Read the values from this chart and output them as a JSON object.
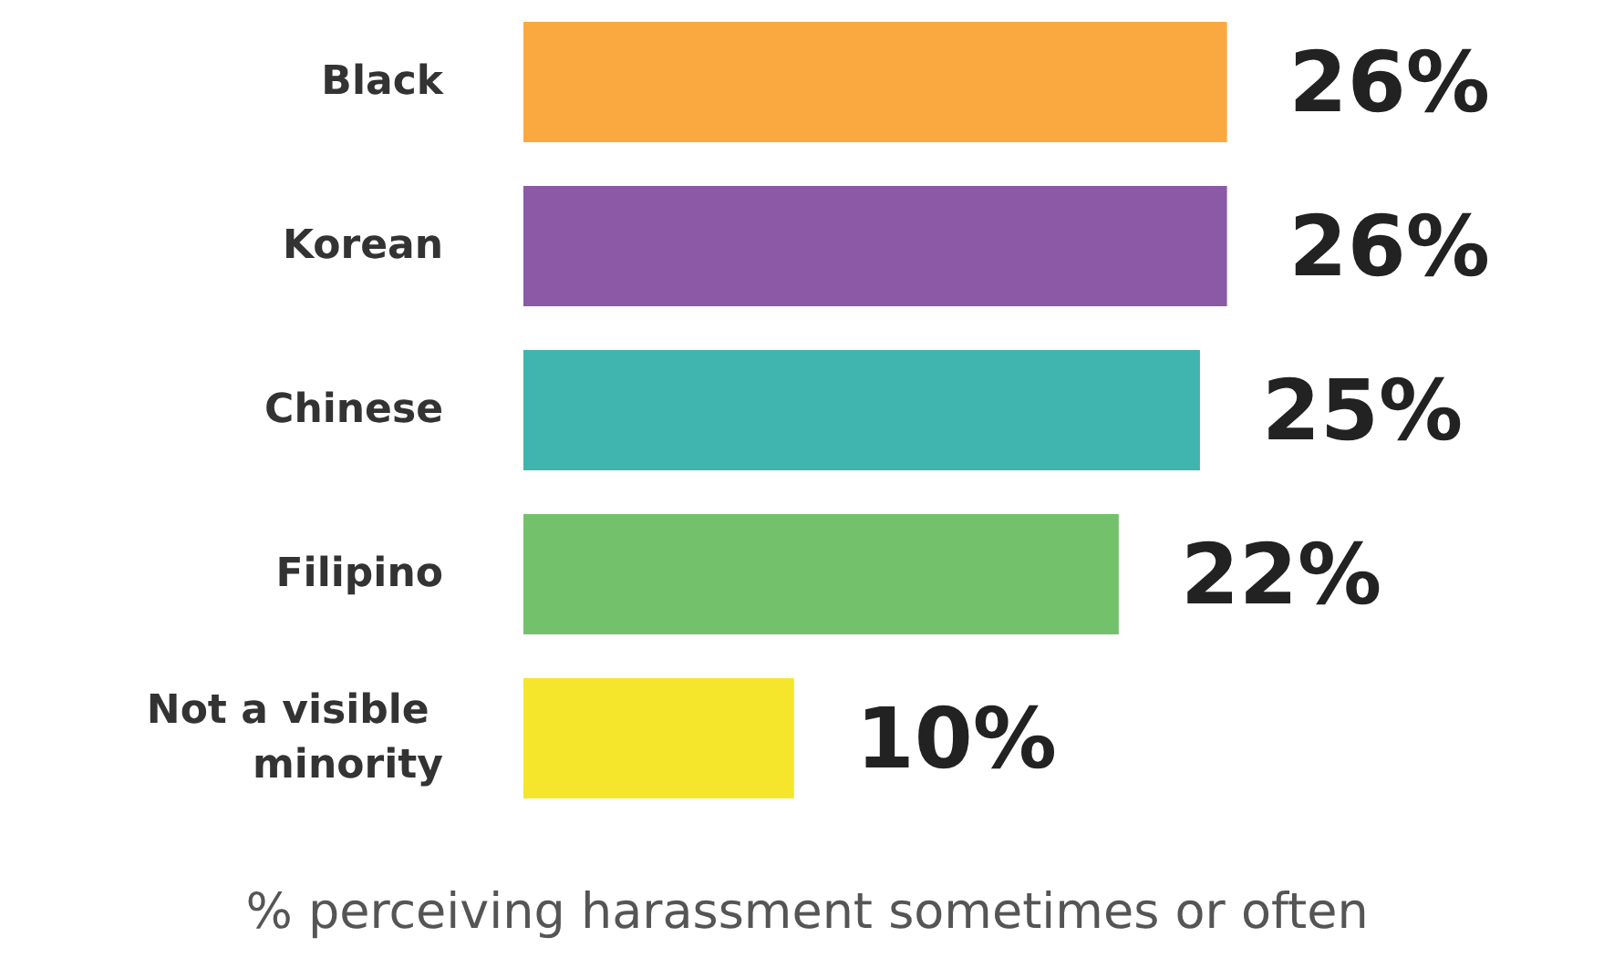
{
  "chart_data": {
    "type": "bar",
    "orientation": "horizontal",
    "xlabel": "% perceiving harassment sometimes or often",
    "categories": [
      "Black",
      "Korean",
      "Chinese",
      "Filipino",
      "Not a visible minority"
    ],
    "values": [
      26,
      26,
      25,
      22,
      10
    ],
    "colors": [
      "#f9a93f",
      "#8b59a6",
      "#40b4ae",
      "#74c16c",
      "#f6e62b"
    ],
    "value_labels": [
      "26%",
      "26%",
      "25%",
      "22%",
      "10%"
    ],
    "tick_labels": "y"
  }
}
